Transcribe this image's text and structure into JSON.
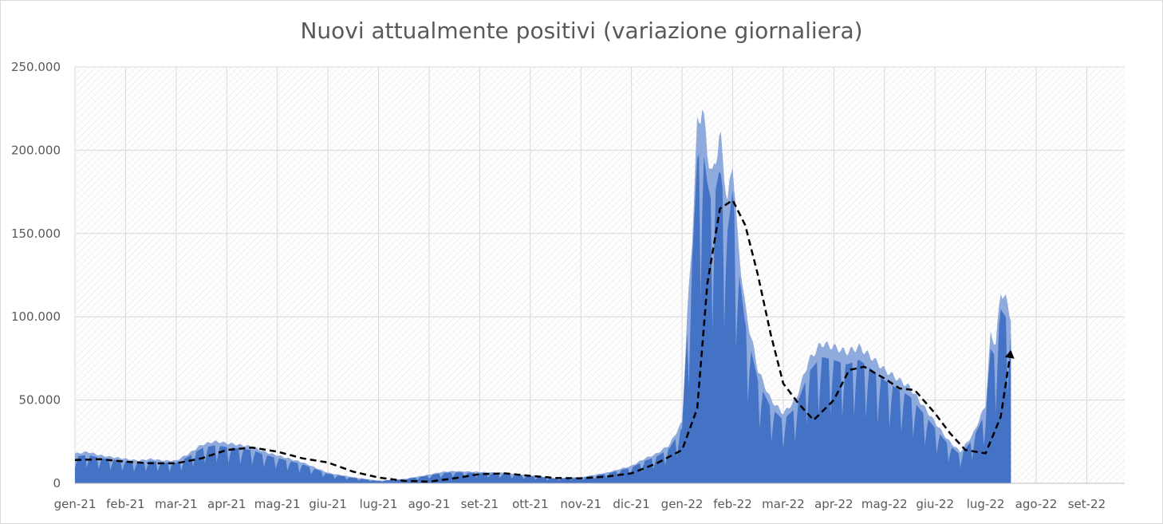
{
  "chart_data": {
    "type": "area",
    "title": "Nuovi attualmente positivi (variazione giornaliera)",
    "xlabel": "",
    "ylabel": "",
    "ylim": [
      0,
      250000
    ],
    "yticks": [
      0,
      50000,
      100000,
      150000,
      200000,
      250000
    ],
    "ytick_labels": [
      "0",
      "50.000",
      "100.000",
      "150.000",
      "200.000",
      "250.000"
    ],
    "xticks": [
      "gen-21",
      "feb-21",
      "mar-21",
      "apr-21",
      "mag-21",
      "giu-21",
      "lug-21",
      "ago-21",
      "set-21",
      "ott-21",
      "nov-21",
      "dic-21",
      "gen-22",
      "feb-22",
      "mar-22",
      "apr-22",
      "mag-22",
      "giu-22",
      "lug-22",
      "ago-22",
      "set-22"
    ],
    "grid": true,
    "legend": "none",
    "colors": {
      "area_dark": "#4472C4",
      "area_light": "#8FAADC",
      "trend": "#000000",
      "grid": "#d9d9d9"
    },
    "series": [
      {
        "kind": "area",
        "x_month_index": [
          0,
          0.25,
          0.5,
          0.75,
          1,
          1.25,
          1.5,
          1.75,
          2,
          2.25,
          2.5,
          2.75,
          3,
          3.25,
          3.5,
          3.75,
          4,
          4.25,
          4.5,
          4.75,
          5,
          5.5,
          6,
          6.5,
          7,
          7.25,
          7.5,
          8,
          8.5,
          9,
          9.5,
          10,
          10.5,
          11,
          11.25,
          11.5,
          11.75,
          12,
          12.1,
          12.2,
          12.3,
          12.4,
          12.5,
          12.6,
          12.75,
          12.9,
          13,
          13.1,
          13.25,
          13.5,
          13.75,
          14,
          14.25,
          14.5,
          14.75,
          15,
          15.25,
          15.5,
          15.75,
          16,
          16.25,
          16.5,
          16.75,
          17,
          17.25,
          17.5,
          17.75,
          18,
          18.1,
          18.2,
          18.3,
          18.4,
          18.5
        ],
        "values": [
          17000,
          18000,
          16000,
          15000,
          14000,
          13000,
          14000,
          13000,
          13000,
          17000,
          22000,
          24000,
          23000,
          22000,
          21000,
          18000,
          16000,
          14000,
          12000,
          9000,
          6000,
          3500,
          1500,
          2500,
          5000,
          6500,
          7000,
          6500,
          6000,
          4500,
          3000,
          3500,
          6000,
          10000,
          14000,
          17000,
          22000,
          35000,
          95000,
          140000,
          205000,
          215000,
          190000,
          175000,
          200000,
          160000,
          185000,
          140000,
          100000,
          65000,
          48000,
          40000,
          48000,
          70000,
          80000,
          78000,
          75000,
          78000,
          72000,
          65000,
          60000,
          55000,
          45000,
          35000,
          25000,
          18000,
          28000,
          45000,
          85000,
          80000,
          110000,
          105000,
          95000
        ]
      },
      {
        "kind": "trend",
        "style": "dashed",
        "x_month_index": [
          0,
          0.5,
          1,
          1.5,
          2,
          2.5,
          3,
          3.5,
          4,
          4.5,
          5,
          5.5,
          6,
          6.5,
          7,
          7.5,
          8,
          8.5,
          9,
          9.5,
          10,
          10.5,
          11,
          11.5,
          12,
          12.3,
          12.5,
          12.75,
          13,
          13.25,
          13.5,
          13.75,
          14,
          14.3,
          14.6,
          15,
          15.3,
          15.6,
          16,
          16.3,
          16.6,
          17,
          17.3,
          17.6,
          18,
          18.3,
          18.5
        ],
        "values": [
          14000,
          14500,
          13000,
          12000,
          12000,
          15000,
          20000,
          21500,
          19000,
          15000,
          12500,
          7000,
          3500,
          1500,
          1000,
          3000,
          5500,
          6000,
          4500,
          3200,
          3000,
          4000,
          6000,
          12000,
          20000,
          45000,
          120000,
          165000,
          170000,
          155000,
          125000,
          90000,
          60000,
          48000,
          38000,
          50000,
          68000,
          70000,
          63000,
          57000,
          56000,
          42000,
          30000,
          20000,
          18000,
          40000,
          80000
        ]
      }
    ]
  }
}
